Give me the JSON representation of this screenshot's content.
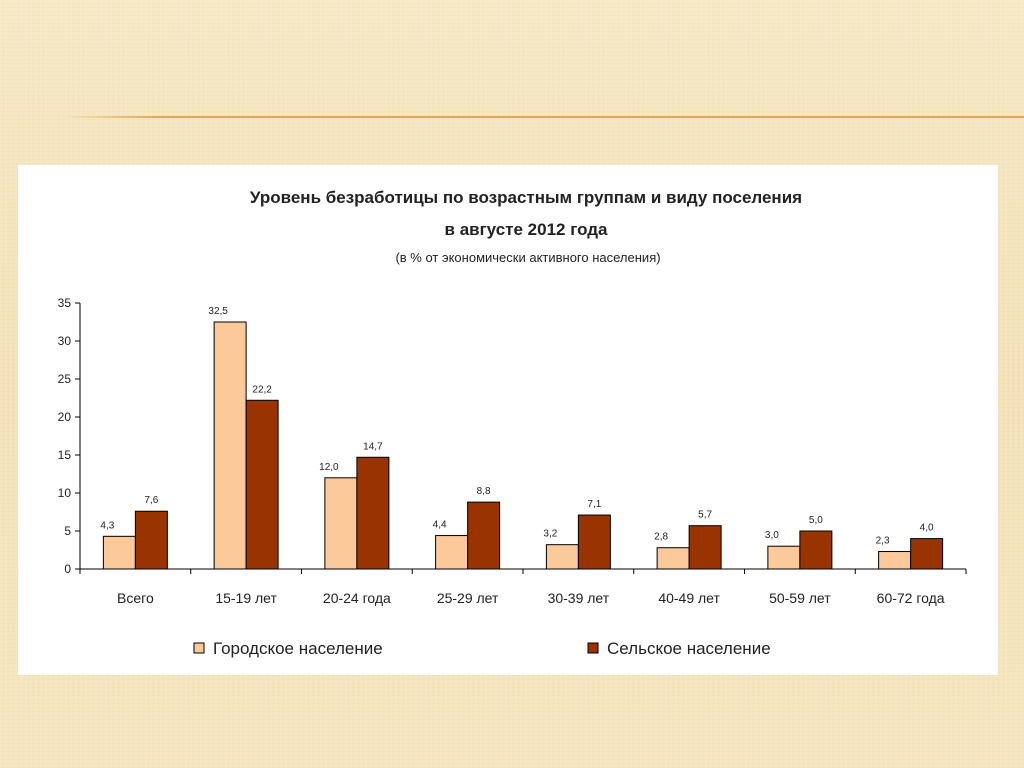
{
  "chart_data": {
    "type": "bar",
    "title_line1": "Уровень безработицы по возрастным группам и виду поселения",
    "title_line2": "в августе 2012 года",
    "subtitle": "(в  % от экономически активного населения)",
    "categories": [
      "Всего",
      "15-19 лет",
      "20-24 года",
      "25-29 лет",
      "30-39 лет",
      "40-49 лет",
      "50-59 лет",
      "60-72 года"
    ],
    "series": [
      {
        "name": "Городское население",
        "color": "#fcc99b",
        "values": [
          4.3,
          32.5,
          12.0,
          4.4,
          3.2,
          2.8,
          3.0,
          2.3
        ],
        "labels": [
          "4,3",
          "32,5",
          "12,0",
          "4,4",
          "3,2",
          "2,8",
          "3,0",
          "2,3"
        ]
      },
      {
        "name": "Сельское население",
        "color": "#993300",
        "values": [
          7.6,
          22.2,
          14.7,
          8.8,
          7.1,
          5.7,
          5.0,
          4.0
        ],
        "labels": [
          "7,6",
          "22,2",
          "14,7",
          "8,8",
          "7,1",
          "5,7",
          "5,0",
          "4,0"
        ]
      }
    ],
    "ylim": [
      0,
      35
    ],
    "yticks": [
      "0",
      "5",
      "10",
      "15",
      "20",
      "25",
      "30",
      "35"
    ],
    "grid": false,
    "legend_position": "bottom"
  }
}
